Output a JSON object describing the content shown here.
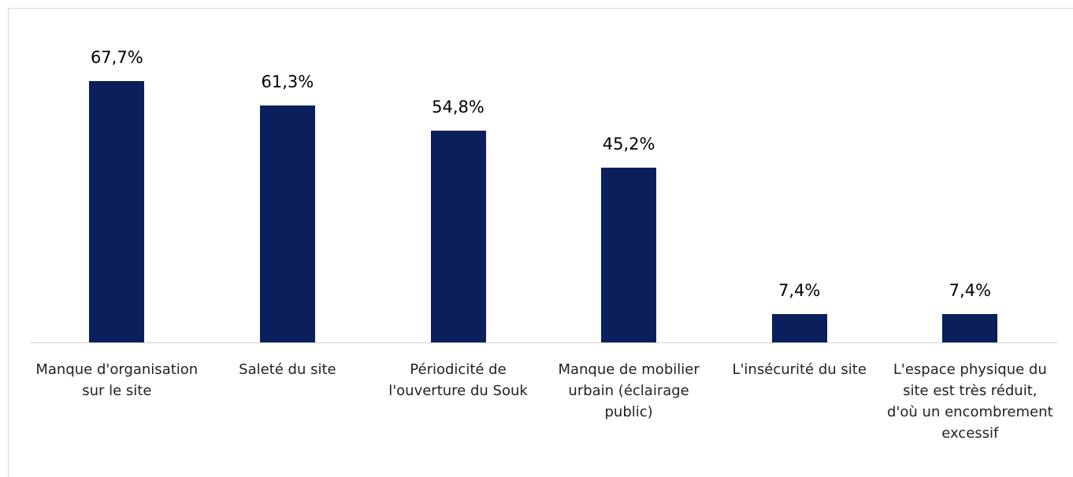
{
  "chart_data": {
    "type": "bar",
    "categories": [
      "Manque d'organisation sur le site",
      "Saleté du site",
      "Périodicité de l'ouverture du Souk",
      "Manque de mobilier urbain (éclairage public)",
      "L'insécurité du site",
      "L'espace physique du site est très réduit, d'où un encombrement excessif"
    ],
    "values": [
      67.7,
      61.3,
      54.8,
      45.2,
      7.4,
      7.4
    ],
    "value_labels": [
      "67,7%",
      "61,3%",
      "54,8%",
      "45,2%",
      "7,4%",
      "7,4%"
    ],
    "color": "#0b1f5c"
  }
}
